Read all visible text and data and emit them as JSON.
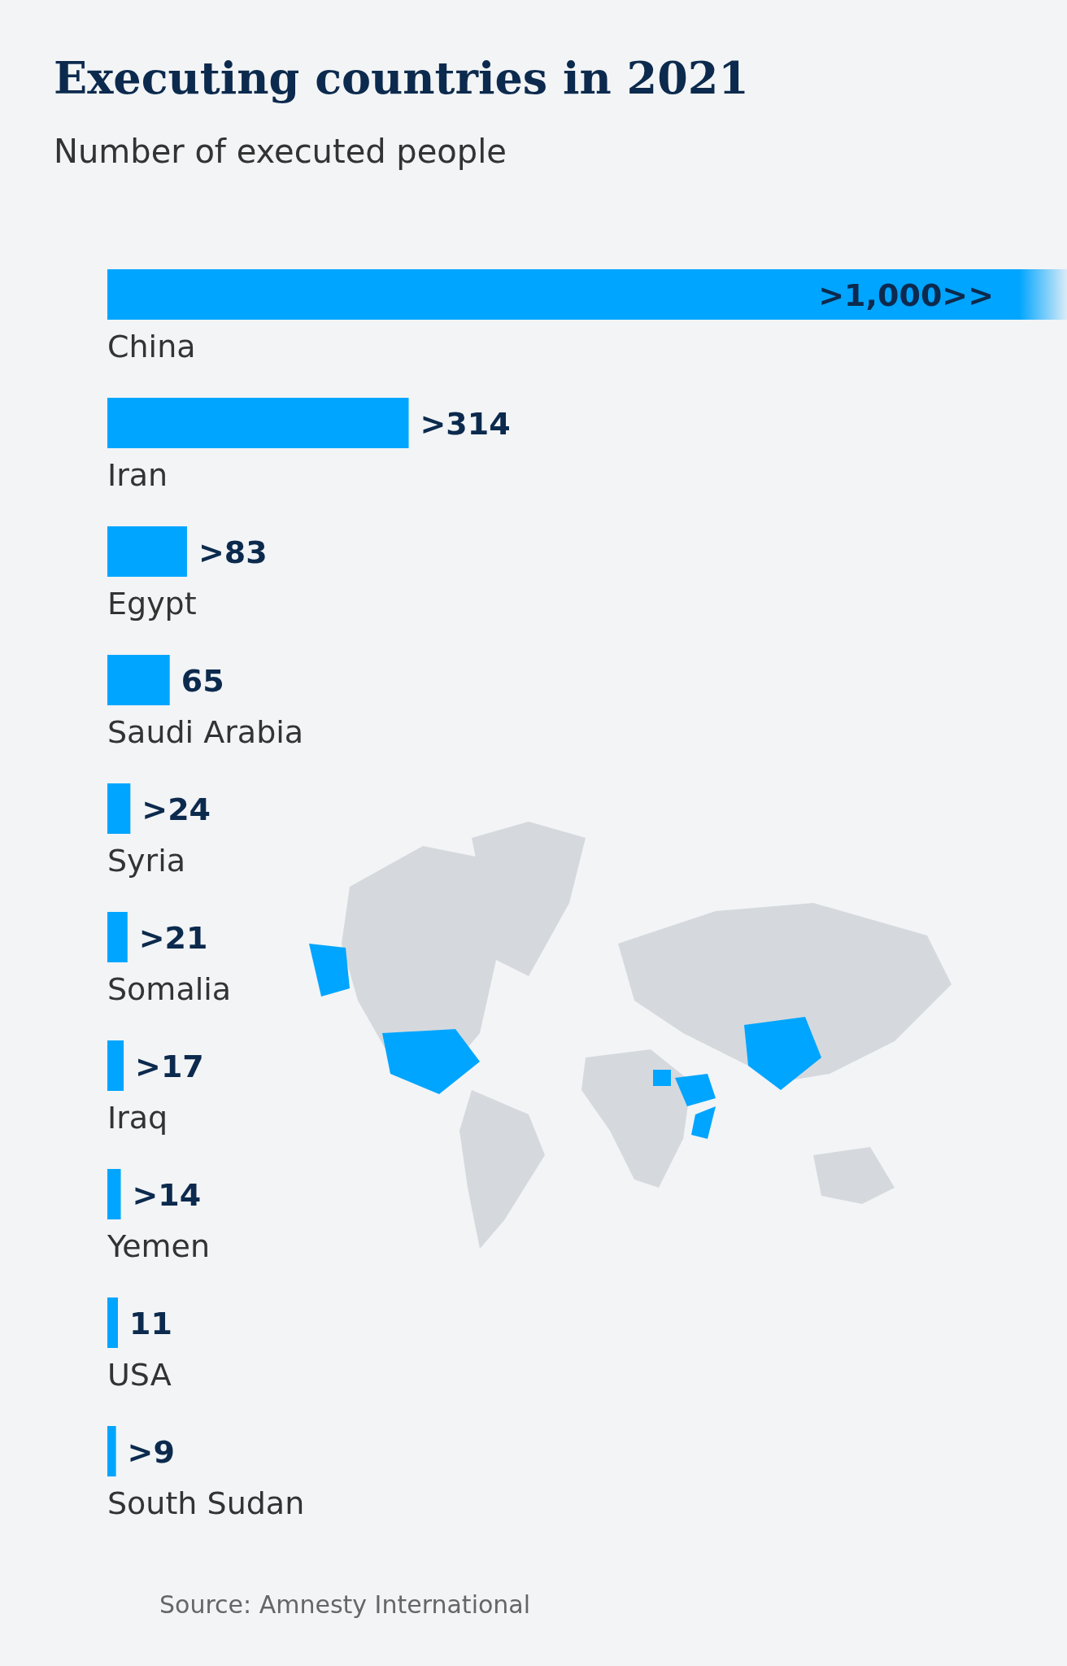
{
  "chart_data": {
    "type": "bar",
    "orientation": "horizontal",
    "title": "Executing countries in 2021",
    "subtitle": "Number of executed people",
    "categories": [
      "China",
      "Iran",
      "Egypt",
      "Saudi Arabia",
      "Syria",
      "Somalia",
      "Iraq",
      "Yemen",
      "USA",
      "South Sudan"
    ],
    "values": [
      1000,
      314,
      83,
      65,
      24,
      21,
      17,
      14,
      11,
      9
    ],
    "value_labels": [
      ">1,000>>",
      ">314",
      ">83",
      "65",
      ">24",
      ">21",
      ">17",
      ">14",
      "11",
      ">9"
    ],
    "color": "#00a5ff",
    "xlim": [
      0,
      1000
    ],
    "annotations": [
      "Source: Amnesty International"
    ]
  }
}
